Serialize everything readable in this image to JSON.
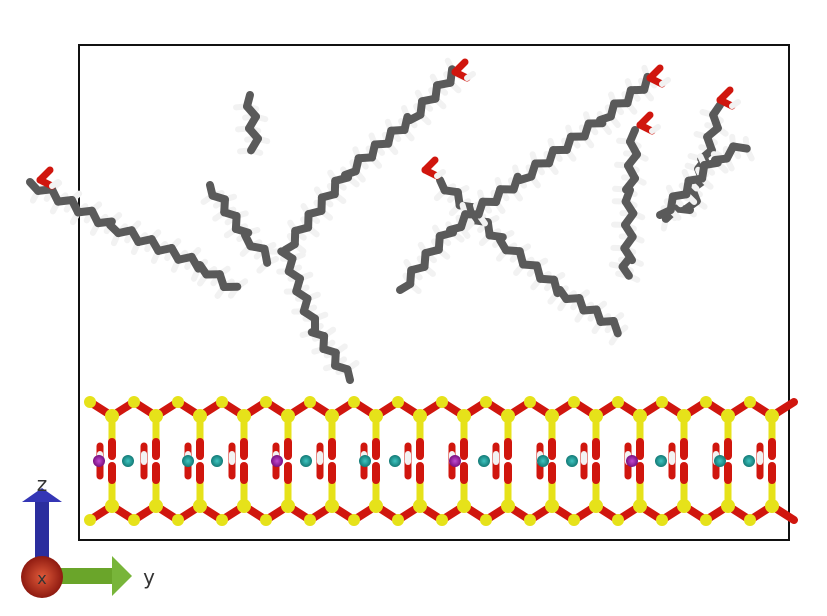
{
  "scene": {
    "description_tag": "molecular-dynamics-render",
    "colors": {
      "carbon": "#5a5a5a",
      "hydrogen": "#f2f2f2",
      "oxygen": "#d0160e",
      "silicon": "#e6e21a",
      "sodium": "#8e1a9b",
      "calcium": "#1a8f8c",
      "axis_z": "#2b2e9e",
      "axis_y": "#6aa52a",
      "axis_x": "#b22a1c",
      "box": "#111111"
    }
  },
  "axes": {
    "z_label": "z",
    "y_label": "y",
    "x_label": "x"
  }
}
